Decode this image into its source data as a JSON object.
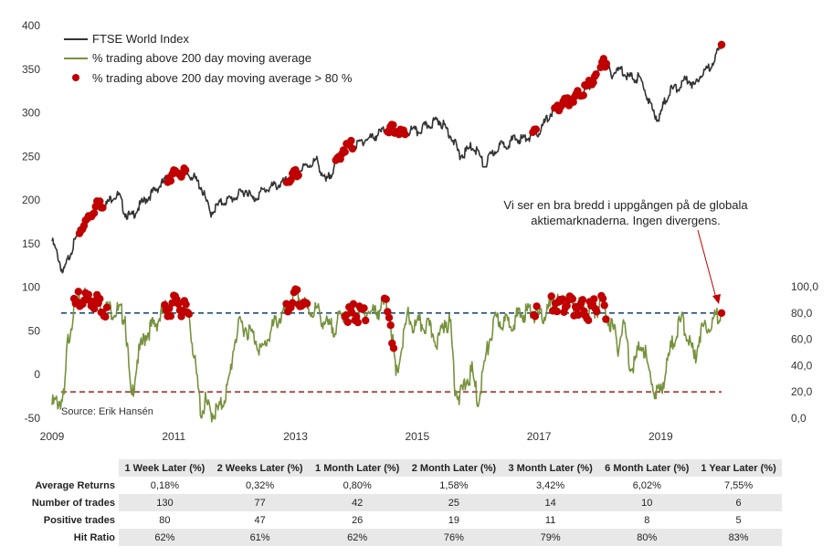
{
  "chart_data": {
    "type": "line",
    "title": "",
    "xlabel": "",
    "x_ticks": [
      "2009",
      "2011",
      "2013",
      "2015",
      "2017",
      "2019"
    ],
    "x_range": [
      2009.0,
      2020.0
    ],
    "y_left": {
      "ticks": [
        "-50",
        "0",
        "50",
        "100",
        "150",
        "200",
        "250",
        "300",
        "350",
        "400"
      ],
      "range": [
        -50,
        400
      ]
    },
    "y_right": {
      "ticks": [
        "0,0",
        "20,0",
        "40,0",
        "60,0",
        "80,0",
        "100,0"
      ],
      "range": [
        0,
        100
      ]
    },
    "legend": [
      {
        "name": "FTSE World Index",
        "color": "#333333",
        "kind": "line"
      },
      {
        "name": "% trading above 200 day moving average",
        "color": "#76923c",
        "kind": "line"
      },
      {
        "name": "% trading above 200 day moving average > 80 %",
        "color": "#c00000",
        "kind": "marker"
      }
    ],
    "legend_position": "top-left",
    "series": [
      {
        "name": "FTSE World Index",
        "axis": "left",
        "x": [
          2009.0,
          2009.1,
          2009.18,
          2009.3,
          2009.45,
          2009.6,
          2009.75,
          2009.9,
          2010.0,
          2010.1,
          2010.2,
          2010.3,
          2010.4,
          2010.5,
          2010.6,
          2010.75,
          2010.9,
          2011.0,
          2011.1,
          2011.3,
          2011.45,
          2011.6,
          2011.7,
          2011.8,
          2011.9,
          2012.0,
          2012.2,
          2012.3,
          2012.45,
          2012.6,
          2012.75,
          2012.9,
          2013.0,
          2013.2,
          2013.35,
          2013.5,
          2013.65,
          2013.8,
          2013.9,
          2014.0,
          2014.1,
          2014.3,
          2014.5,
          2014.65,
          2014.8,
          2014.9,
          2015.0,
          2015.15,
          2015.35,
          2015.5,
          2015.6,
          2015.7,
          2015.8,
          2015.9,
          2016.0,
          2016.1,
          2016.2,
          2016.35,
          2016.5,
          2016.6,
          2016.75,
          2016.9,
          2017.0,
          2017.2,
          2017.4,
          2017.6,
          2017.8,
          2017.95,
          2018.05,
          2018.12,
          2018.2,
          2018.35,
          2018.5,
          2018.65,
          2018.75,
          2018.85,
          2018.97,
          2019.05,
          2019.15,
          2019.3,
          2019.45,
          2019.55,
          2019.65,
          2019.75,
          2019.85,
          2019.95,
          2020.0
        ],
        "values": [
          153,
          135,
          115,
          140,
          165,
          180,
          195,
          195,
          205,
          205,
          185,
          180,
          190,
          198,
          205,
          215,
          225,
          230,
          232,
          228,
          215,
          185,
          192,
          198,
          200,
          203,
          212,
          200,
          210,
          215,
          218,
          223,
          230,
          240,
          245,
          220,
          240,
          260,
          263,
          262,
          268,
          273,
          282,
          280,
          275,
          280,
          278,
          285,
          292,
          280,
          268,
          250,
          255,
          262,
          255,
          238,
          250,
          262,
          265,
          270,
          270,
          275,
          278,
          300,
          310,
          318,
          330,
          340,
          365,
          350,
          345,
          350,
          340,
          340,
          325,
          305,
          292,
          310,
          325,
          330,
          340,
          330,
          345,
          348,
          358,
          370,
          378
        ]
      },
      {
        "name": "% trading above 200 day moving average",
        "axis": "right",
        "x": [
          2009.0,
          2009.2,
          2009.25,
          2009.35,
          2009.42,
          2009.55,
          2009.75,
          2009.9,
          2010.05,
          2010.2,
          2010.3,
          2010.4,
          2010.55,
          2010.7,
          2010.85,
          2010.95,
          2011.05,
          2011.15,
          2011.25,
          2011.35,
          2011.45,
          2011.52,
          2011.6,
          2011.75,
          2011.9,
          2012.0,
          2012.1,
          2012.2,
          2012.35,
          2012.45,
          2012.55,
          2012.7,
          2012.85,
          2012.95,
          2013.05,
          2013.2,
          2013.35,
          2013.45,
          2013.55,
          2013.65,
          2013.8,
          2013.95,
          2014.05,
          2014.15,
          2014.3,
          2014.45,
          2014.55,
          2014.65,
          2014.75,
          2014.85,
          2014.95,
          2015.05,
          2015.15,
          2015.25,
          2015.35,
          2015.45,
          2015.55,
          2015.62,
          2015.7,
          2015.8,
          2015.9,
          2016.0,
          2016.1,
          2016.2,
          2016.3,
          2016.45,
          2016.6,
          2016.75,
          2016.9,
          2017.0,
          2017.1,
          2017.25,
          2017.4,
          2017.6,
          2017.8,
          2017.95,
          2018.05,
          2018.1,
          2018.2,
          2018.3,
          2018.4,
          2018.5,
          2018.6,
          2018.7,
          2018.8,
          2018.9,
          2018.97,
          2019.05,
          2019.15,
          2019.25,
          2019.35,
          2019.45,
          2019.55,
          2019.65,
          2019.75,
          2019.85,
          2019.95,
          2020.0
        ],
        "values": [
          10,
          15,
          55,
          82,
          88,
          93,
          87,
          83,
          82,
          78,
          12,
          45,
          65,
          72,
          82,
          85,
          90,
          82,
          80,
          40,
          4,
          12,
          4,
          6,
          25,
          60,
          72,
          68,
          60,
          50,
          62,
          75,
          80,
          90,
          92,
          82,
          82,
          75,
          68,
          70,
          80,
          80,
          78,
          82,
          80,
          86,
          82,
          30,
          55,
          78,
          68,
          72,
          70,
          65,
          58,
          75,
          70,
          25,
          15,
          28,
          35,
          12,
          40,
          62,
          75,
          72,
          75,
          80,
          82,
          75,
          80,
          88,
          86,
          85,
          82,
          84,
          87,
          80,
          70,
          55,
          72,
          40,
          45,
          60,
          35,
          22,
          18,
          30,
          50,
          65,
          75,
          62,
          45,
          65,
          72,
          72,
          80,
          80
        ]
      }
    ],
    "highlight_markers": [
      {
        "series": "FTSE World Index",
        "periods": [
          [
            2009.45,
            2009.85
          ],
          [
            2010.9,
            2011.2
          ],
          [
            2012.85,
            2013.05
          ],
          [
            2013.65,
            2013.95
          ],
          [
            2014.5,
            2014.8
          ],
          [
            2016.9,
            2016.97
          ],
          [
            2017.25,
            2017.95
          ],
          [
            2018.0,
            2018.12
          ],
          [
            2020.0,
            2020.0
          ]
        ]
      },
      {
        "series": "% trading above 200 day moving average",
        "periods": [
          [
            2009.35,
            2009.9
          ],
          [
            2010.85,
            2011.25
          ],
          [
            2012.85,
            2013.2
          ],
          [
            2013.8,
            2014.15
          ],
          [
            2014.45,
            2014.62
          ],
          [
            2016.9,
            2016.97
          ],
          [
            2017.2,
            2017.95
          ],
          [
            2018.02,
            2018.1
          ],
          [
            2020.0,
            2020.0
          ]
        ]
      }
    ],
    "reference_lines": [
      {
        "axis": "right",
        "value": 80,
        "color": "#1f4e79",
        "style": "dashed"
      },
      {
        "axis": "right",
        "value": 20,
        "color": "#a83232",
        "style": "dashed"
      }
    ],
    "annotation": {
      "text_lines": [
        "Vi ser en bra bredd i uppgången på de globala",
        "aktiemarknaderna. Ingen divergens."
      ],
      "target": {
        "series": "% trading above 200 day moving average",
        "x": 2020.0
      }
    },
    "source": "Source: Erik Hansén"
  },
  "table": {
    "headers": [
      "1 Week Later (%)",
      "2 Weeks Later (%)",
      "1 Month Later (%)",
      "2 Month Later (%)",
      "3 Month Later (%)",
      "6 Month Later (%)",
      "1 Year Later (%)"
    ],
    "rows": [
      {
        "label": "Average Returns",
        "cells": [
          "0,18%",
          "0,32%",
          "0,80%",
          "1,58%",
          "3,42%",
          "6,02%",
          "7,55%"
        ]
      },
      {
        "label": "Number of trades",
        "cells": [
          "130",
          "77",
          "42",
          "25",
          "14",
          "10",
          "6"
        ]
      },
      {
        "label": "Positive trades",
        "cells": [
          "80",
          "47",
          "26",
          "19",
          "11",
          "8",
          "5"
        ]
      },
      {
        "label": "Hit Ratio",
        "cells": [
          "62%",
          "61%",
          "62%",
          "76%",
          "79%",
          "80%",
          "83%"
        ]
      }
    ]
  }
}
